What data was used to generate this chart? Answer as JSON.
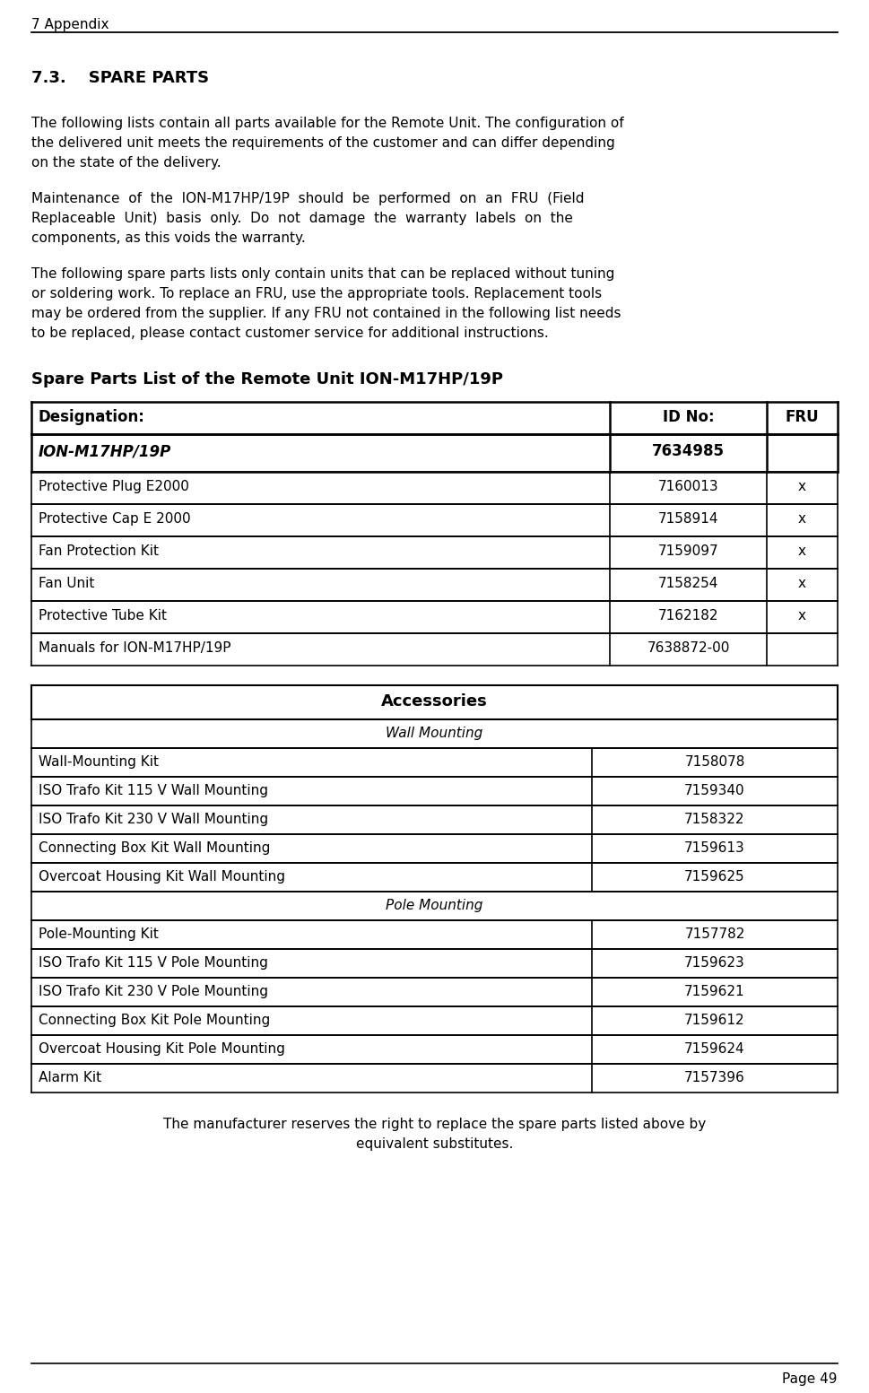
{
  "page_header": "7 Appendix",
  "page_number": "Page 49",
  "section_title": "7.3.    SPARE PARTS",
  "para1_lines": [
    "The following lists contain all parts available for the Remote Unit. The configuration of",
    "the delivered unit meets the requirements of the customer and can differ depending",
    "on the state of the delivery."
  ],
  "para2_lines": [
    "Maintenance  of  the  ION-M17HP/19P  should  be  performed  on  an  FRU  (Field",
    "Replaceable  Unit)  basis  only.  Do  not  damage  the  warranty  labels  on  the",
    "components, as this voids the warranty."
  ],
  "para3_lines": [
    "The following spare parts lists only contain units that can be replaced without tuning",
    "or soldering work. To replace an FRU, use the appropriate tools. Replacement tools",
    "may be ordered from the supplier. If any FRU not contained in the following list needs",
    "to be replaced, please contact customer service for additional instructions."
  ],
  "spare_parts_title": "Spare Parts List of the Remote Unit ION-M17HP/19P",
  "table1_header": [
    "Designation:",
    "ID No:",
    "FRU"
  ],
  "table1_rows": [
    [
      "ION-M17HP/19P",
      "7634985",
      ""
    ],
    [
      "Protective Plug E2000",
      "7160013",
      "x"
    ],
    [
      "Protective Cap E 2000",
      "7158914",
      "x"
    ],
    [
      "Fan Protection Kit",
      "7159097",
      "x"
    ],
    [
      "Fan Unit",
      "7158254",
      "x"
    ],
    [
      "Protective Tube Kit",
      "7162182",
      "x"
    ],
    [
      "Manuals for ION-M17HP/19P",
      "7638872-00",
      ""
    ]
  ],
  "table2_header": "Accessories",
  "table2_section1": "Wall Mounting",
  "table2_rows1": [
    [
      "Wall-Mounting Kit",
      "7158078"
    ],
    [
      "ISO Trafo Kit 115 V Wall Mounting",
      "7159340"
    ],
    [
      "ISO Trafo Kit 230 V Wall Mounting",
      "7158322"
    ],
    [
      "Connecting Box Kit Wall Mounting",
      "7159613"
    ],
    [
      "Overcoat Housing Kit Wall Mounting",
      "7159625"
    ]
  ],
  "table2_section2": "Pole Mounting",
  "table2_rows2": [
    [
      "Pole-Mounting Kit",
      "7157782"
    ],
    [
      "ISO Trafo Kit 115 V Pole Mounting",
      "7159623"
    ],
    [
      "ISO Trafo Kit 230 V Pole Mounting",
      "7159621"
    ],
    [
      "Connecting Box Kit Pole Mounting",
      "7159612"
    ],
    [
      "Overcoat Housing Kit Pole Mounting",
      "7159624"
    ],
    [
      "Alarm Kit",
      "7157396"
    ]
  ],
  "footer_lines": [
    "The manufacturer reserves the right to replace the spare parts listed above by",
    "equivalent substitutes."
  ],
  "bg_color": "#ffffff",
  "text_color": "#000000"
}
